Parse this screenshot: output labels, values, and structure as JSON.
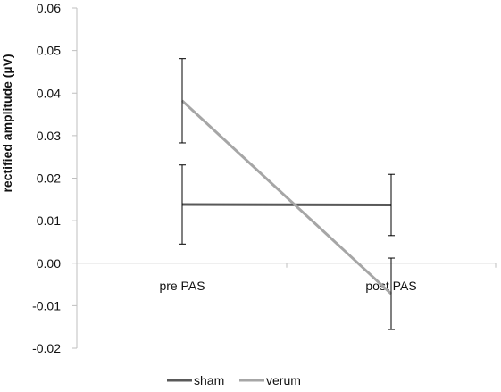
{
  "chart_data": {
    "type": "line",
    "title": "",
    "xlabel": "",
    "ylabel": "rectified amplitude (µV)",
    "categories": [
      "pre PAS",
      "post PAS"
    ],
    "ylim": [
      -0.02,
      0.06
    ],
    "yticks": [
      "-0.02",
      "-0.01",
      "0.00",
      "0.01",
      "0.02",
      "0.03",
      "0.04",
      "0.05",
      "0.06"
    ],
    "grid": false,
    "legend_position": "bottom",
    "series": [
      {
        "name": "sham",
        "color": "#595959",
        "values": [
          0.0138,
          0.0137
        ],
        "error": [
          0.0093,
          0.0072
        ]
      },
      {
        "name": "verum",
        "color": "#a6a6a6",
        "values": [
          0.0382,
          -0.0072
        ],
        "error": [
          0.0099,
          0.0084
        ]
      }
    ]
  }
}
